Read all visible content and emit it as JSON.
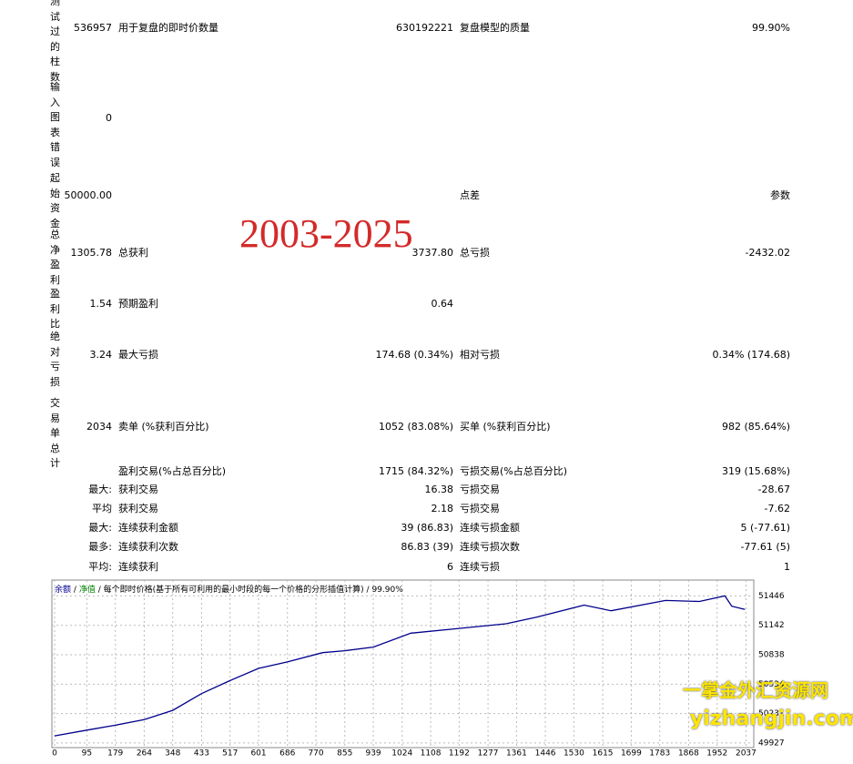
{
  "report": {
    "rows": [
      {
        "label": "测试过的柱数",
        "value": "536957",
        "item": "用于复盘的即时价数量",
        "item_value": "630192221",
        "item2": "复盘模型的质量",
        "item2_value": "99.90%"
      },
      {
        "label": "输入图表错误",
        "value": "0"
      },
      {
        "label": "起始资金",
        "value": "50000.00",
        "item2": "点差",
        "item2_value": "参数"
      },
      {
        "label": "总净盈利",
        "value": "1305.78",
        "item": "总获利",
        "item_value": "3737.80",
        "item2": "总亏损",
        "item2_value": "-2432.02"
      },
      {
        "label": "盈利比",
        "value": "1.54",
        "item": "预期盈利",
        "item_value": "0.64"
      },
      {
        "label": "绝对亏损",
        "value": "3.24",
        "item": "最大亏损",
        "item_value": "174.68 (0.34%)",
        "item2": "相对亏损",
        "item2_value": "0.34% (174.68)"
      },
      {
        "label": "交易单总计",
        "value": "2034",
        "item": "卖单 (%获利百分比)",
        "item_value": "1052 (83.08%)",
        "item2": "买单 (%获利百分比)",
        "item2_value": "982 (85.64%)"
      },
      {
        "item": "盈利交易(%占总百分比)",
        "item_value": "1715 (84.32%)",
        "item2": "亏损交易(%占总百分比)",
        "item2_value": "319 (15.68%)"
      },
      {
        "value": "最大:",
        "item": "获利交易",
        "item_value": "16.38",
        "item2": "亏损交易",
        "item2_value": "-28.67"
      },
      {
        "value": "平均",
        "item": "获利交易",
        "item_value": "2.18",
        "item2": "亏损交易",
        "item2_value": "-7.62"
      },
      {
        "value": "最大:",
        "item": "连续获利金额",
        "item_value": "39 (86.83)",
        "item2": "连续亏损金额",
        "item2_value": "5 (-77.61)"
      },
      {
        "value": "最多:",
        "item": "连续获利次数",
        "item_value": "86.83 (39)",
        "item2": "连续亏损次数",
        "item2_value": "-77.61 (5)"
      },
      {
        "value": "平均:",
        "item": "连续获利",
        "item_value": "6",
        "item2": "连续亏损",
        "item2_value": "1"
      }
    ],
    "overlay": "2003-2025",
    "watermark": "一掌金外汇资源网",
    "watermark_url": "yizhangjin.com"
  },
  "chart_data": {
    "type": "line",
    "header": {
      "separator": "/",
      "equity": "净值",
      "equity_color": "#008000",
      "model": "每个即时价格(基于所有可利用的最小时段的每一个价格的分形插值计算)",
      "quality": "99.90%"
    },
    "x": [
      0,
      95,
      179,
      264,
      348,
      433,
      517,
      601,
      686,
      790,
      855,
      939,
      1050,
      1192,
      1330,
      1420,
      1560,
      1640,
      1800,
      1900,
      1975,
      1995,
      2034
    ],
    "series": [
      {
        "name": "余额",
        "color": "#00008b",
        "values": [
          50000,
          50060,
          50110,
          50168,
          50264,
          50437,
          50571,
          50697,
          50764,
          50860,
          50880,
          50918,
          51062,
          51110,
          51158,
          51226,
          51351,
          51293,
          51399,
          51389,
          51446,
          51340,
          51306
        ]
      }
    ],
    "xlim": [
      -8,
      2060
    ],
    "ylim": [
      49879,
      51610
    ],
    "xticks": [
      0,
      95,
      179,
      264,
      348,
      433,
      517,
      601,
      686,
      770,
      855,
      939,
      1024,
      1108,
      1192,
      1277,
      1361,
      1446,
      1530,
      1615,
      1699,
      1783,
      1868,
      1952,
      2037
    ],
    "yticks": [
      49927,
      50231,
      50534,
      50838,
      51142,
      51446
    ],
    "grid": true
  }
}
